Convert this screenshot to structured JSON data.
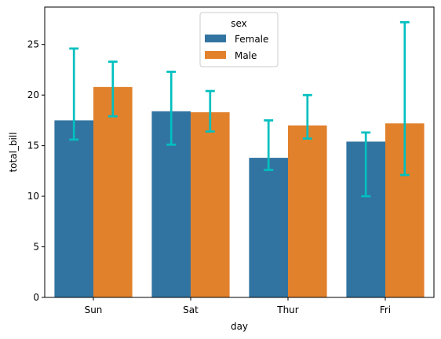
{
  "chart_data": {
    "type": "bar",
    "title": "",
    "xlabel": "day",
    "ylabel": "total_bill",
    "ylim": [
      0,
      28.7
    ],
    "yticks": [
      0,
      5,
      10,
      15,
      20,
      25
    ],
    "categories": [
      "Sun",
      "Sat",
      "Thur",
      "Fri"
    ],
    "series": [
      {
        "name": "Female",
        "color": "#3274a1",
        "values": [
          17.5,
          18.4,
          13.8,
          15.4
        ],
        "ci_low": [
          15.6,
          15.1,
          12.6,
          10.0
        ],
        "ci_high": [
          24.6,
          22.3,
          17.5,
          16.3
        ]
      },
      {
        "name": "Male",
        "color": "#e1812c",
        "values": [
          20.8,
          18.3,
          17.0,
          17.2
        ],
        "ci_low": [
          17.9,
          16.4,
          15.7,
          12.1
        ],
        "ci_high": [
          23.3,
          20.4,
          20.0,
          27.2
        ]
      }
    ],
    "errorbar_color": "#00bfbf",
    "legend": {
      "title": "sex",
      "placement": "upper-center"
    },
    "grid": false
  }
}
